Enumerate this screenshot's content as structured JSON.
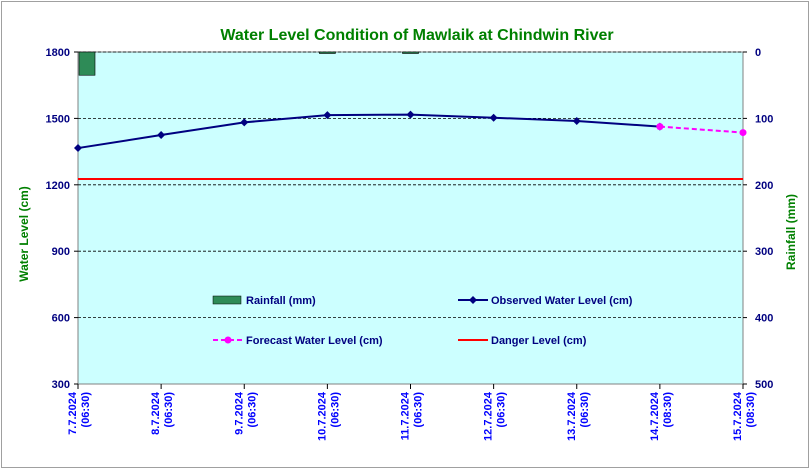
{
  "chart_data": {
    "type": "line",
    "title": "Water Level Condition of Mawlaik at Chindwin River",
    "ylabel": "Water Level (cm)",
    "y2label": "Rainfall (mm)",
    "ylim": [
      300,
      1800
    ],
    "y2lim": [
      0,
      500
    ],
    "y2_reversed": true,
    "yticks": [
      "1800",
      "1500",
      "1200",
      "900",
      "600",
      "300"
    ],
    "y2ticks": [
      "0",
      "100",
      "200",
      "300",
      "400",
      "500"
    ],
    "grid": true,
    "categories": [
      {
        "date": "7.7.2024",
        "time": "(06:30)"
      },
      {
        "date": "8.7.2024",
        "time": "(06:30)"
      },
      {
        "date": "9.7.2024",
        "time": "(06:30)"
      },
      {
        "date": "10.7.2024",
        "time": "(06:30)"
      },
      {
        "date": "11.7.2024",
        "time": "(06:30)"
      },
      {
        "date": "12.7.2024",
        "time": "(06:30)"
      },
      {
        "date": "13.7.2024",
        "time": "(06:30)"
      },
      {
        "date": "14.7.2024",
        "time": "(08:30)"
      },
      {
        "date": "15.7.2024",
        "time": "(08:30)"
      }
    ],
    "series": [
      {
        "name": "Rainfall (mm)",
        "kind": "bar",
        "axis": "right",
        "color": "#2e8b57",
        "values": [
          35,
          0,
          0,
          0.5,
          0.5,
          0,
          0,
          0,
          0
        ]
      },
      {
        "name": "Observed Water Level (cm)",
        "kind": "line",
        "axis": "left",
        "color": "#000080",
        "values": [
          1366,
          1425,
          1482,
          1515,
          1517,
          1503,
          1488,
          1463,
          null
        ]
      },
      {
        "name": "Forecast Water Level (cm)",
        "kind": "dashed-line",
        "axis": "left",
        "color": "#ff00ff",
        "values": [
          null,
          null,
          null,
          null,
          null,
          null,
          null,
          1463,
          1436
        ]
      },
      {
        "name": "Danger Level (cm)",
        "kind": "line",
        "axis": "left",
        "color": "#ff0000",
        "values": [
          1226,
          1226,
          1226,
          1226,
          1226,
          1226,
          1226,
          1226,
          1226
        ]
      }
    ],
    "legend_placement": "inside-bottom"
  },
  "colors": {
    "plot_background": "#ccffff",
    "title": "#008000",
    "axis_labels": "#008000",
    "tick_labels": "#000080",
    "date_labels": "#0000ff"
  }
}
